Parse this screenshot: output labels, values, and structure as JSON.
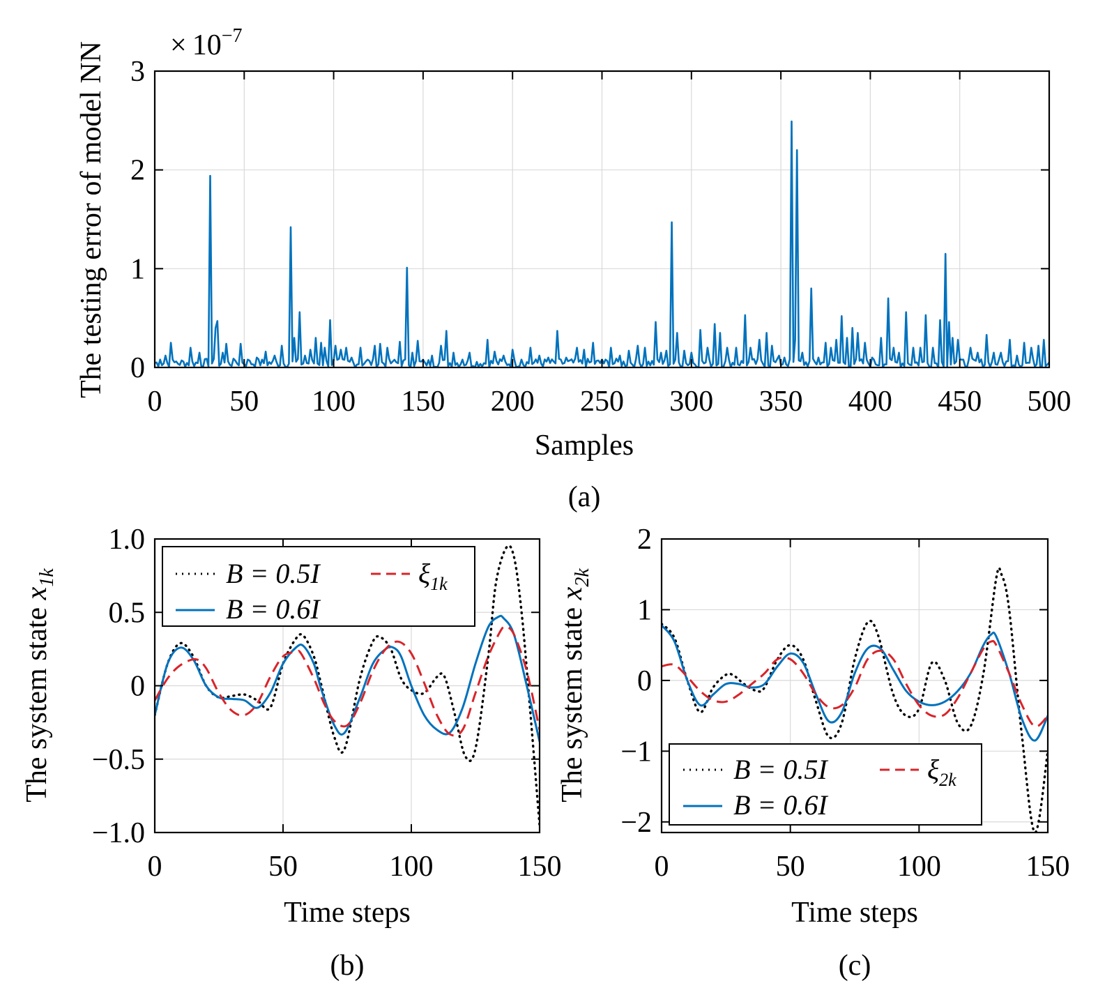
{
  "figure": {
    "panel_a_caption": "(a)",
    "panel_b_caption": "(b)",
    "panel_c_caption": "(c)"
  },
  "chart_data": [
    {
      "panel": "a",
      "type": "line",
      "xlabel": "Samples",
      "ylabel": "The testing error of model NN",
      "y_multiplier": {
        "times": "×",
        "base": "10",
        "exponent": "−7"
      },
      "xlim": [
        0,
        500
      ],
      "ylim": [
        0,
        3
      ],
      "xticks": [
        0,
        50,
        100,
        150,
        200,
        250,
        300,
        350,
        400,
        450,
        500
      ],
      "xtick_labels": [
        "0",
        "50",
        "100",
        "150",
        "200",
        "250",
        "300",
        "350",
        "400",
        "450",
        "500"
      ],
      "yticks": [
        0,
        1,
        2,
        3
      ],
      "ytick_labels": [
        "0",
        "1",
        "2",
        "3"
      ],
      "grid": true,
      "color": "#0072BD",
      "peaks": [
        [
          3,
          0.08
        ],
        [
          6,
          0.12
        ],
        [
          9,
          0.25
        ],
        [
          12,
          0.06
        ],
        [
          20,
          0.2
        ],
        [
          25,
          0.15
        ],
        [
          31,
          1.94
        ],
        [
          34,
          0.4
        ],
        [
          35,
          0.47
        ],
        [
          38,
          0.15
        ],
        [
          40,
          0.24
        ],
        [
          45,
          0.07
        ],
        [
          48,
          0.24
        ],
        [
          52,
          0.08
        ],
        [
          57,
          0.1
        ],
        [
          62,
          0.16
        ],
        [
          67,
          0.12
        ],
        [
          71,
          0.22
        ],
        [
          76,
          1.42
        ],
        [
          78,
          0.3
        ],
        [
          81,
          0.56
        ],
        [
          84,
          0.12
        ],
        [
          87,
          0.18
        ],
        [
          90,
          0.3
        ],
        [
          93,
          0.25
        ],
        [
          95,
          0.2
        ],
        [
          98,
          0.48
        ],
        [
          101,
          0.22
        ],
        [
          104,
          0.18
        ],
        [
          107,
          0.2
        ],
        [
          110,
          0.1
        ],
        [
          115,
          0.2
        ],
        [
          119,
          0.08
        ],
        [
          123,
          0.22
        ],
        [
          126,
          0.24
        ],
        [
          130,
          0.2
        ],
        [
          133,
          0.06
        ],
        [
          137,
          0.26
        ],
        [
          141,
          1.01
        ],
        [
          144,
          0.15
        ],
        [
          147,
          0.27
        ],
        [
          151,
          0.05
        ],
        [
          155,
          0.12
        ],
        [
          160,
          0.22
        ],
        [
          163,
          0.37
        ],
        [
          167,
          0.15
        ],
        [
          172,
          0.08
        ],
        [
          176,
          0.15
        ],
        [
          186,
          0.28
        ],
        [
          190,
          0.16
        ],
        [
          195,
          0.12
        ],
        [
          200,
          0.18
        ],
        [
          205,
          0.08
        ],
        [
          210,
          0.2
        ],
        [
          215,
          0.12
        ],
        [
          220,
          0.1
        ],
        [
          225,
          0.37
        ],
        [
          230,
          0.1
        ],
        [
          236,
          0.2
        ],
        [
          240,
          0.18
        ],
        [
          245,
          0.25
        ],
        [
          250,
          0.08
        ],
        [
          255,
          0.2
        ],
        [
          260,
          0.12
        ],
        [
          265,
          0.17
        ],
        [
          270,
          0.22
        ],
        [
          274,
          0.2
        ],
        [
          280,
          0.46
        ],
        [
          283,
          0.15
        ],
        [
          286,
          0.17
        ],
        [
          289,
          1.47
        ],
        [
          292,
          0.35
        ],
        [
          296,
          0.17
        ],
        [
          300,
          0.15
        ],
        [
          305,
          0.38
        ],
        [
          309,
          0.2
        ],
        [
          313,
          0.44
        ],
        [
          316,
          0.35
        ],
        [
          320,
          0.2
        ],
        [
          325,
          0.2
        ],
        [
          330,
          0.53
        ],
        [
          333,
          0.2
        ],
        [
          338,
          0.28
        ],
        [
          342,
          0.35
        ],
        [
          345,
          0.22
        ],
        [
          349,
          0.12
        ],
        [
          352,
          0.1
        ],
        [
          356,
          2.49
        ],
        [
          358,
          0.28
        ],
        [
          359,
          2.2
        ],
        [
          362,
          0.15
        ],
        [
          367,
          0.8
        ],
        [
          371,
          0.1
        ],
        [
          375,
          0.25
        ],
        [
          378,
          0.2
        ],
        [
          381,
          0.28
        ],
        [
          384,
          0.52
        ],
        [
          387,
          0.3
        ],
        [
          390,
          0.4
        ],
        [
          393,
          0.35
        ],
        [
          397,
          0.25
        ],
        [
          401,
          0.1
        ],
        [
          406,
          0.3
        ],
        [
          410,
          0.7
        ],
        [
          413,
          0.2
        ],
        [
          416,
          0.15
        ],
        [
          420,
          0.56
        ],
        [
          424,
          0.2
        ],
        [
          428,
          0.2
        ],
        [
          431,
          0.53
        ],
        [
          435,
          0.2
        ],
        [
          439,
          0.48
        ],
        [
          442,
          1.15
        ],
        [
          444,
          0.46
        ],
        [
          446,
          0.3
        ],
        [
          449,
          0.28
        ],
        [
          452,
          0.08
        ],
        [
          456,
          0.2
        ],
        [
          460,
          0.15
        ],
        [
          465,
          0.33
        ],
        [
          469,
          0.15
        ],
        [
          473,
          0.15
        ],
        [
          478,
          0.28
        ],
        [
          482,
          0.12
        ],
        [
          486,
          0.25
        ],
        [
          490,
          0.2
        ],
        [
          494,
          0.22
        ],
        [
          497,
          0.28
        ],
        [
          500,
          0.05
        ]
      ]
    },
    {
      "panel": "b",
      "type": "line",
      "xlabel": "Time steps",
      "ylabel_text": "The system state ",
      "ylabel_sym": "x",
      "ylabel_sub": "1k",
      "xlim": [
        0,
        150
      ],
      "ylim": [
        -1,
        1
      ],
      "xticks": [
        0,
        50,
        100,
        150
      ],
      "xtick_labels": [
        "0",
        "50",
        "100",
        "150"
      ],
      "yticks": [
        -1,
        -0.5,
        0,
        0.5,
        1
      ],
      "ytick_labels": [
        "−1.0",
        "−0.5",
        "0",
        "0.5",
        "1.0"
      ],
      "grid": true,
      "legend_position": "top-left",
      "series": [
        {
          "name": "B = 0.5I",
          "style": "dotted",
          "color": "#000000",
          "x": [
            0,
            5,
            10,
            15,
            20,
            25,
            30,
            35,
            40,
            45,
            50,
            55,
            58,
            62,
            65,
            70,
            74,
            80,
            85,
            88,
            92,
            96,
            100,
            105,
            110,
            113,
            117,
            121,
            125,
            130,
            133,
            137,
            140,
            143,
            146,
            150
          ],
          "y": [
            -0.2,
            0.15,
            0.29,
            0.2,
            0.0,
            -0.08,
            -0.07,
            -0.06,
            -0.1,
            -0.15,
            0.15,
            0.32,
            0.34,
            0.2,
            0.0,
            -0.35,
            -0.43,
            0.05,
            0.3,
            0.33,
            0.25,
            0.05,
            -0.03,
            -0.05,
            0.06,
            0.06,
            -0.2,
            -0.48,
            -0.43,
            0.2,
            0.7,
            0.94,
            0.88,
            0.5,
            -0.1,
            -0.95
          ]
        },
        {
          "name": "B = 0.6I",
          "style": "solid",
          "color": "#0072BD",
          "x": [
            0,
            5,
            10,
            15,
            20,
            25,
            30,
            35,
            40,
            45,
            50,
            55,
            58,
            62,
            65,
            70,
            74,
            80,
            85,
            90,
            93,
            96,
            100,
            105,
            110,
            115,
            120,
            125,
            130,
            134,
            136,
            140,
            145,
            150
          ],
          "y": [
            -0.2,
            0.15,
            0.26,
            0.18,
            0.0,
            -0.08,
            -0.09,
            -0.1,
            -0.15,
            -0.05,
            0.15,
            0.26,
            0.27,
            0.15,
            -0.03,
            -0.27,
            -0.32,
            -0.08,
            0.15,
            0.25,
            0.26,
            0.2,
            0.0,
            -0.2,
            -0.3,
            -0.32,
            -0.15,
            0.15,
            0.4,
            0.47,
            0.46,
            0.35,
            0.0,
            -0.38
          ]
        },
        {
          "name": "ξ",
          "name_sub": "1k",
          "style": "dashed",
          "color": "#D9242A",
          "x": [
            0,
            5,
            10,
            16,
            20,
            25,
            30,
            35,
            40,
            45,
            50,
            55,
            57,
            62,
            66,
            70,
            75,
            80,
            85,
            90,
            95,
            100,
            105,
            110,
            115,
            120,
            125,
            130,
            135,
            137,
            140,
            145,
            150
          ],
          "y": [
            -0.1,
            0.05,
            0.14,
            0.18,
            0.12,
            -0.05,
            -0.17,
            -0.2,
            -0.12,
            0.06,
            0.2,
            0.23,
            0.22,
            0.05,
            -0.12,
            -0.24,
            -0.27,
            -0.12,
            0.1,
            0.25,
            0.3,
            0.22,
            0.02,
            -0.2,
            -0.33,
            -0.3,
            -0.05,
            0.2,
            0.38,
            0.4,
            0.35,
            0.1,
            -0.3
          ]
        }
      ]
    },
    {
      "panel": "c",
      "type": "line",
      "xlabel": "Time steps",
      "ylabel_text": "The system state ",
      "ylabel_sym": "x",
      "ylabel_sub": "2k",
      "xlim": [
        0,
        150
      ],
      "ylim": [
        -2.15,
        2
      ],
      "xticks": [
        0,
        50,
        100,
        150
      ],
      "xtick_labels": [
        "0",
        "50",
        "100",
        "150"
      ],
      "yticks": [
        -2,
        -1,
        0,
        1,
        2
      ],
      "ytick_labels": [
        "−2",
        "−1",
        "0",
        "1",
        "2"
      ],
      "grid": true,
      "legend_position": "bottom-left",
      "series": [
        {
          "name": "B = 0.5I",
          "style": "dotted",
          "color": "#000000",
          "x": [
            0,
            5,
            10,
            15,
            20,
            25,
            28,
            32,
            37,
            40,
            45,
            50,
            55,
            60,
            65,
            70,
            75,
            80,
            84,
            90,
            95,
            100,
            105,
            110,
            115,
            120,
            125,
            130,
            132,
            135,
            140,
            145,
            150
          ],
          "y": [
            0.8,
            0.6,
            0.0,
            -0.45,
            -0.1,
            0.08,
            0.07,
            -0.05,
            -0.15,
            -0.1,
            0.3,
            0.5,
            0.3,
            -0.3,
            -0.8,
            -0.6,
            0.3,
            0.82,
            0.65,
            -0.2,
            -0.5,
            -0.4,
            0.25,
            0.0,
            -0.6,
            -0.65,
            0.1,
            1.45,
            1.5,
            1.0,
            -0.8,
            -2.15,
            -1.0
          ]
        },
        {
          "name": "B = 0.6I",
          "style": "solid",
          "color": "#0072BD",
          "x": [
            0,
            5,
            10,
            15,
            20,
            25,
            30,
            35,
            40,
            45,
            50,
            55,
            60,
            65,
            70,
            75,
            80,
            85,
            90,
            95,
            100,
            105,
            110,
            115,
            120,
            125,
            128,
            130,
            135,
            140,
            145,
            150
          ],
          "y": [
            0.78,
            0.55,
            0.0,
            -0.35,
            -0.2,
            -0.05,
            -0.05,
            -0.1,
            -0.05,
            0.2,
            0.38,
            0.25,
            -0.2,
            -0.58,
            -0.45,
            0.1,
            0.45,
            0.45,
            0.15,
            -0.15,
            -0.3,
            -0.35,
            -0.3,
            -0.15,
            0.1,
            0.5,
            0.65,
            0.62,
            0.1,
            -0.55,
            -0.85,
            -0.5
          ]
        },
        {
          "name": "ξ",
          "name_sub": "2k",
          "style": "dashed",
          "color": "#D9242A",
          "x": [
            0,
            5,
            10,
            15,
            20,
            25,
            30,
            35,
            40,
            45,
            50,
            55,
            60,
            65,
            70,
            75,
            80,
            85,
            90,
            95,
            100,
            105,
            110,
            115,
            120,
            125,
            128,
            130,
            135,
            140,
            145,
            150
          ],
          "y": [
            0.2,
            0.22,
            0.05,
            -0.15,
            -0.28,
            -0.3,
            -0.2,
            -0.05,
            0.1,
            0.3,
            0.3,
            0.1,
            -0.2,
            -0.38,
            -0.35,
            -0.1,
            0.3,
            0.42,
            0.3,
            -0.05,
            -0.35,
            -0.5,
            -0.48,
            -0.25,
            0.1,
            0.45,
            0.55,
            0.5,
            0.1,
            -0.35,
            -0.65,
            -0.5
          ]
        }
      ]
    }
  ]
}
